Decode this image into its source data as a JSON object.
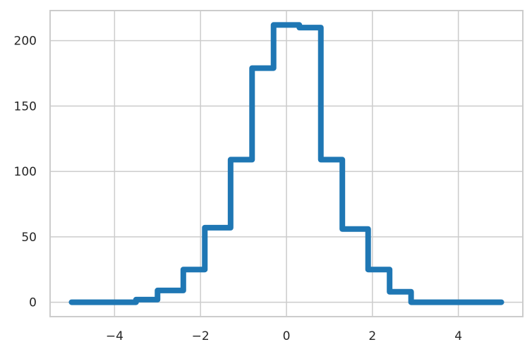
{
  "chart_data": {
    "type": "line",
    "step": "post",
    "title": "",
    "xlabel": "",
    "ylabel": "",
    "xlim": [
      -5.5,
      5.5
    ],
    "ylim": [
      -11,
      223
    ],
    "xticks": [
      -4,
      -2,
      0,
      2,
      4
    ],
    "xtick_labels": [
      "−4",
      "−2",
      "0",
      "2",
      "4"
    ],
    "yticks": [
      0,
      50,
      100,
      150,
      200
    ],
    "ytick_labels": [
      "0",
      "50",
      "100",
      "150",
      "200"
    ],
    "grid": true,
    "line_color": "#1f77b4",
    "series": [
      {
        "x": [
          -5.0,
          -4.5,
          -4.0,
          -3.5,
          -3.0,
          -2.4,
          -1.9,
          -1.3,
          -0.8,
          -0.3,
          0.3,
          0.8,
          1.3,
          1.9,
          2.4,
          2.9,
          3.4,
          4.0,
          4.5,
          5.0
        ],
        "values": [
          0,
          0,
          0,
          2,
          9,
          25,
          57,
          109,
          179,
          212,
          210,
          109,
          56,
          25,
          8,
          0,
          0,
          0,
          0,
          0
        ]
      }
    ]
  }
}
